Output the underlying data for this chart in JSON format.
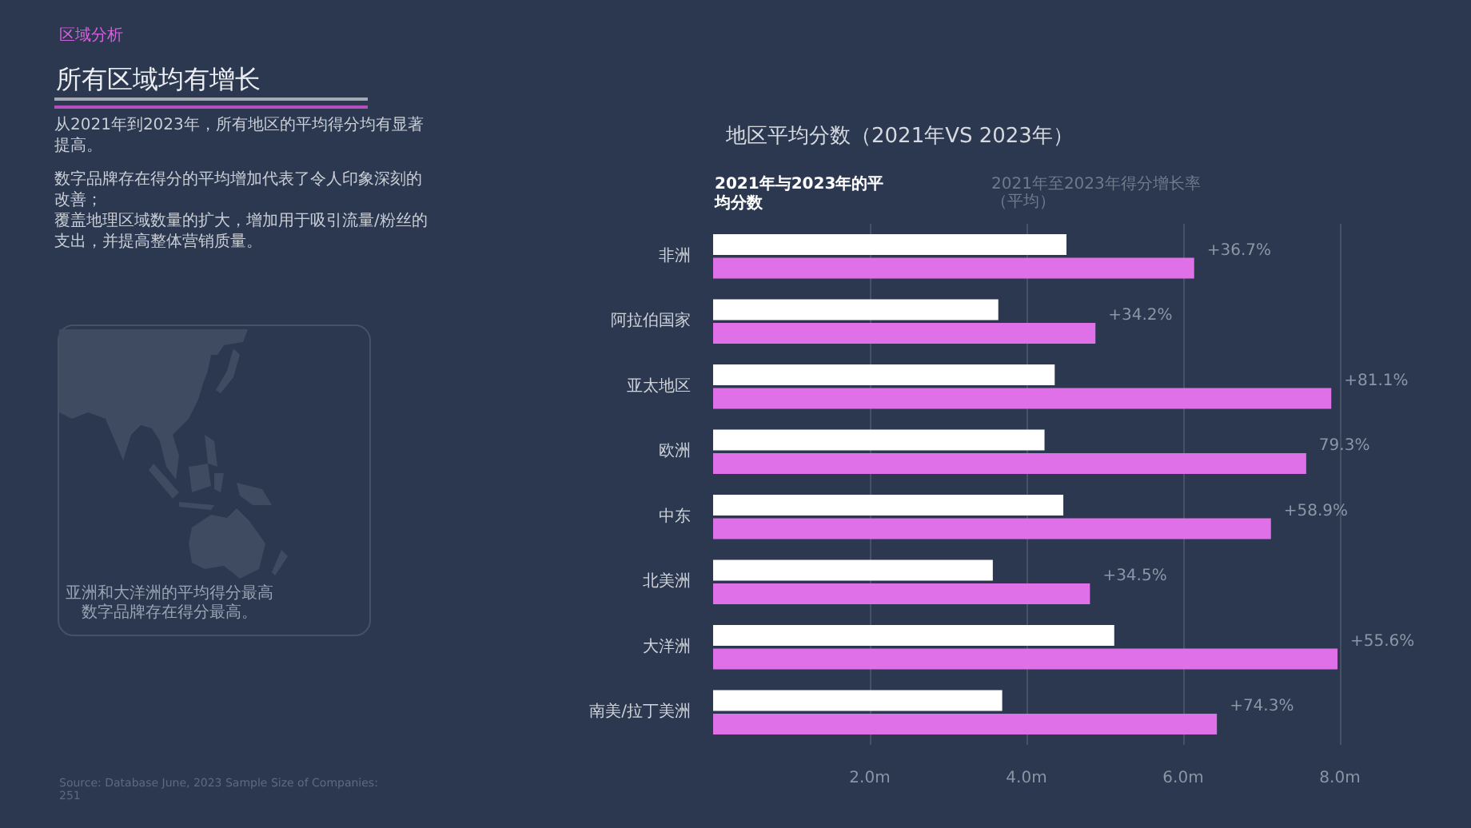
{
  "chart_data": {
    "type": "bar",
    "orientation": "horizontal",
    "title": "地区平均分数（2021年VS 2023年）",
    "categories": [
      "非洲",
      "阿拉伯国家",
      "亚太地区",
      "欧洲",
      "中东",
      "北美洲",
      "大洋洲",
      "南美/拉丁美洲"
    ],
    "series": [
      {
        "color": "#ffffff",
        "values": [
          4.51,
          3.64,
          4.36,
          4.23,
          4.47,
          3.57,
          5.12,
          3.69
        ]
      },
      {
        "color": "#e070e8",
        "values": [
          6.14,
          4.88,
          7.89,
          7.57,
          7.12,
          4.81,
          7.97,
          6.43
        ]
      }
    ],
    "xlim": [
      0,
      8
    ],
    "xticks": [
      {
        "value": 2,
        "label": "2.0m"
      },
      {
        "value": 4,
        "label": "4.0m"
      },
      {
        "value": 6,
        "label": "6.0m"
      },
      {
        "value": 8,
        "label": "8.0m"
      }
    ],
    "grid": "x",
    "annotations": [
      "区域分析",
      "所有区域均有增长",
      "从2021年到2023年，所有地区的平均得分均有显著提高。",
      "数字品牌存在得分的平均增加代表了令人印象深刻的改善；",
      "覆盖地理区域数量的扩大，增加用于吸引流量/粉丝的支出，并提高整体营销质量。",
      "亚洲和大洋洲的平均得分最高",
      "数字品牌存在得分最高。",
      "Source: Database June, 2023 Sample Size of Companies: 251",
      "2021年与2023年的平均分数",
      "2021年至2023年得分增长率（平均）",
      {
        "text": "+36.7%",
        "x": 6.14,
        "y": "非洲"
      },
      {
        "text": "+34.2%",
        "x": 4.88,
        "y": "阿拉伯国家"
      },
      {
        "text": "+81.1%",
        "x": 7.89,
        "y": "亚太地区"
      },
      {
        "text": "79.3%",
        "x": 7.57,
        "y": "欧洲"
      },
      {
        "text": "+58.9%",
        "x": 7.12,
        "y": "中东"
      },
      {
        "text": "+34.5%",
        "x": 4.81,
        "y": "北美洲"
      },
      {
        "text": "+55.6%",
        "x": 7.97,
        "y": "大洋洲"
      },
      {
        "text": "+74.3%",
        "x": 6.43,
        "y": "南美/拉丁美洲"
      }
    ]
  }
}
